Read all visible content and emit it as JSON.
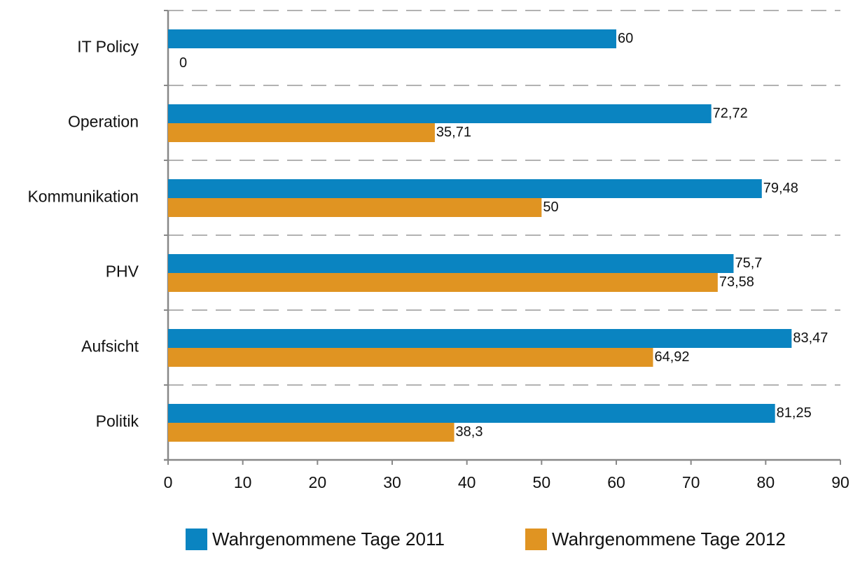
{
  "chart_data": {
    "type": "bar",
    "orientation": "horizontal",
    "categories": [
      "IT Policy",
      "Operation",
      "Kommunikation",
      "PHV",
      "Aufsicht",
      "Politik"
    ],
    "series": [
      {
        "name": "Wahrgenommene Tage 2011",
        "color": "#0a84c1",
        "values": [
          60,
          72.72,
          79.48,
          75.7,
          83.47,
          81.25
        ],
        "value_labels": [
          "60",
          "72,72",
          "79,48",
          "75,7",
          "83,47",
          "81,25"
        ]
      },
      {
        "name": "Wahrgenommene Tage 2012",
        "color": "#e09422",
        "values": [
          0,
          35.71,
          50,
          73.58,
          64.92,
          38.3
        ],
        "value_labels": [
          "0",
          "35,71",
          "50",
          "73,58",
          "64,92",
          "38,3"
        ]
      }
    ],
    "xlim": [
      0,
      90
    ],
    "xticks": [
      0,
      10,
      20,
      30,
      40,
      50,
      60,
      70,
      80,
      90
    ],
    "legend": "bottom"
  }
}
